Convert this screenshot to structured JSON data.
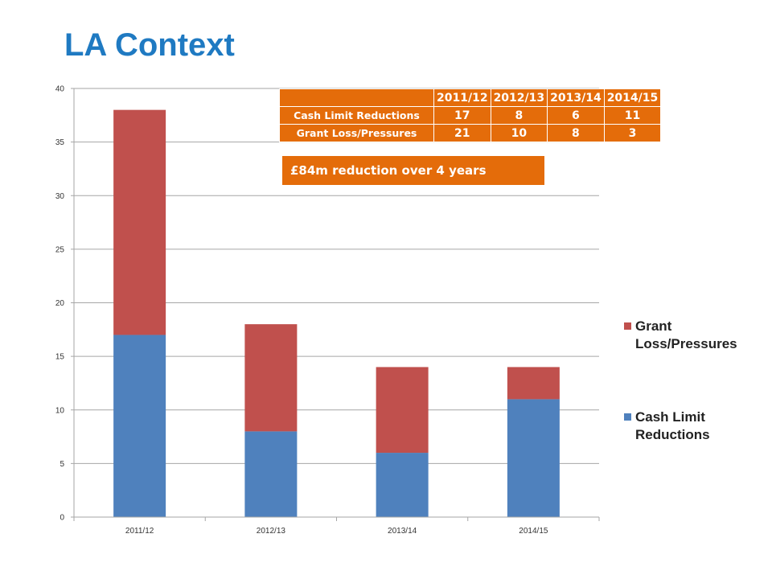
{
  "slide": {
    "title": "LA Context"
  },
  "chart_data": {
    "type": "bar",
    "stacked": true,
    "categories": [
      "2011/12",
      "2012/13",
      "2013/14",
      "2014/15"
    ],
    "series": [
      {
        "name": "Cash Limit Reductions",
        "values": [
          17,
          8,
          6,
          11
        ],
        "color": "#4f81bd"
      },
      {
        "name": "Grant Loss/Pressures",
        "values": [
          21,
          10,
          8,
          3
        ],
        "color": "#c0504d"
      }
    ],
    "yticks": [
      "0",
      "5",
      "10",
      "15",
      "20",
      "25",
      "30",
      "35",
      "40"
    ],
    "ylim": [
      0,
      40
    ],
    "grid": true,
    "legend_position": "right",
    "legend_lines": [
      {
        "series": "Grant Loss/Pressures",
        "lines": [
          "Grant",
          "Loss/Pressures"
        ]
      },
      {
        "series": "Cash Limit Reductions",
        "lines": [
          "Cash Limit",
          "Reductions"
        ]
      }
    ]
  },
  "table": {
    "headers": [
      "",
      "2011/12",
      "2012/13",
      "2013/14",
      "2014/15"
    ],
    "rows": [
      {
        "label": "Cash Limit Reductions",
        "values": [
          "17",
          "8",
          "6",
          "11"
        ]
      },
      {
        "label": "Grant Loss/Pressures",
        "values": [
          "21",
          "10",
          "8",
          "3"
        ]
      }
    ]
  },
  "callout": {
    "text": "£84m reduction over 4 years"
  },
  "colors": {
    "title": "#1f7ac2",
    "accent": "#e46c0a",
    "gridline": "#a6a6a6"
  }
}
